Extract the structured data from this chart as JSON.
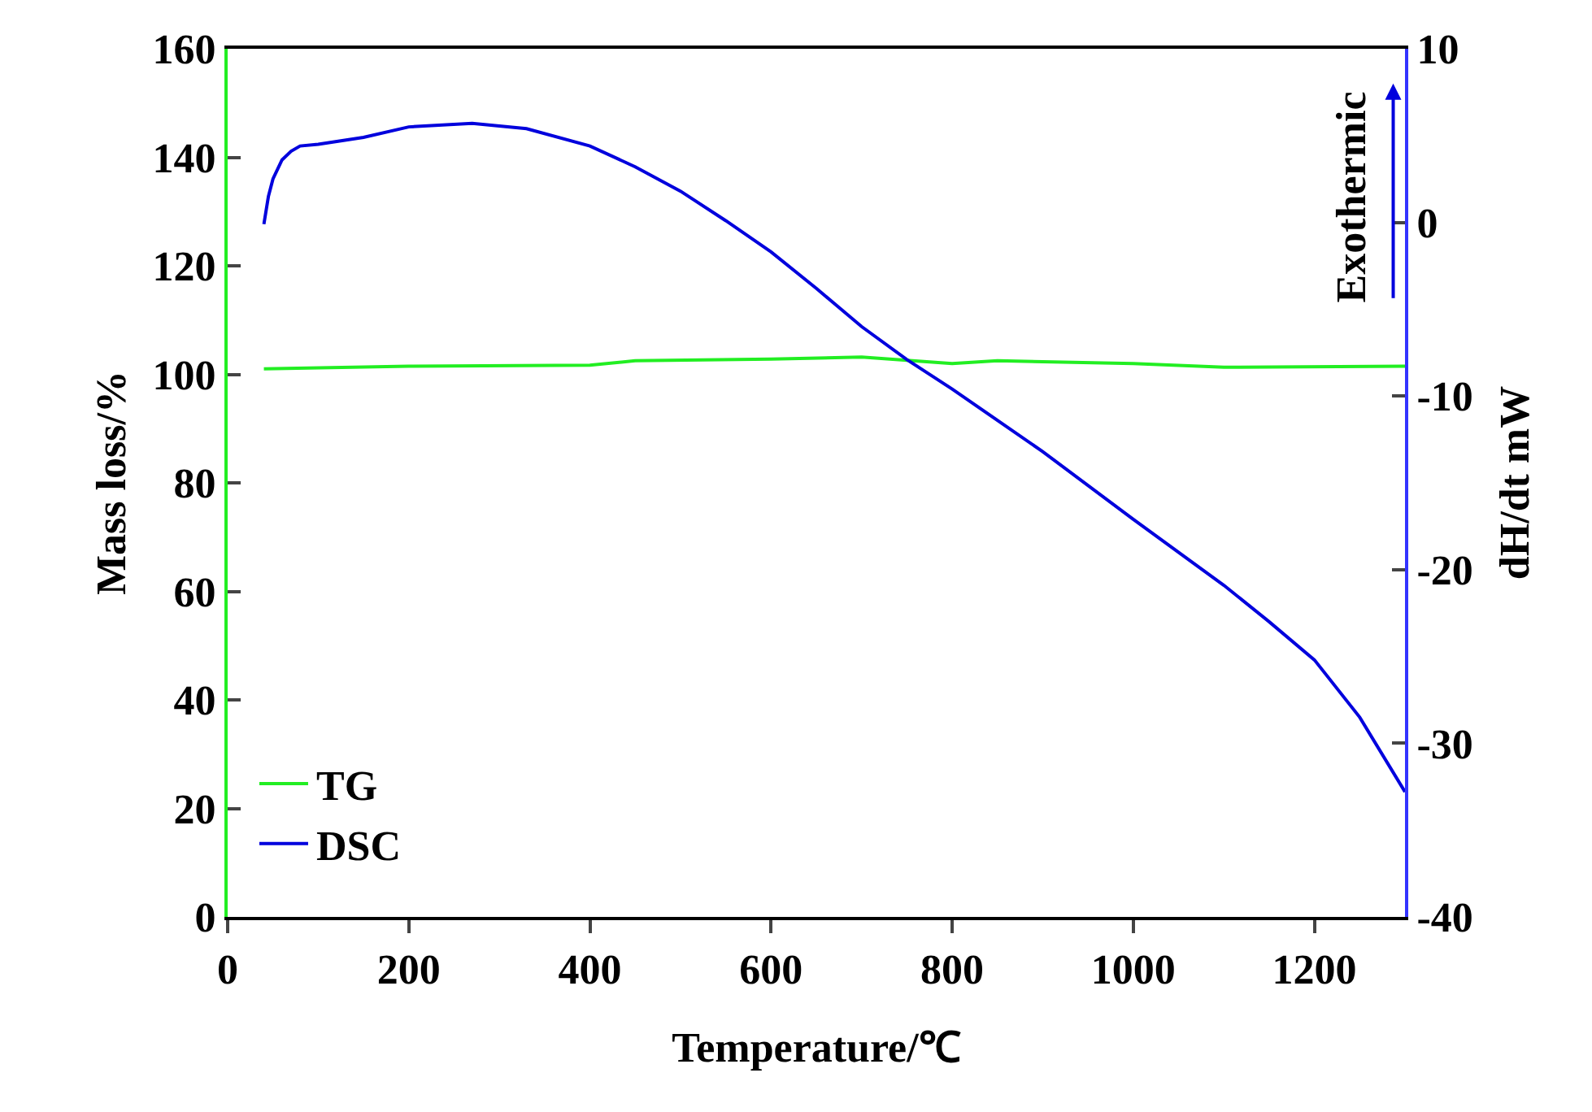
{
  "chart_data": {
    "type": "line",
    "xlabel": "Temperature/℃",
    "ylabel": "Mass loss/%",
    "y2label": "dH/dt mW",
    "annotations": [
      "Exothermic"
    ],
    "xlim": [
      0,
      1300
    ],
    "xticks": [
      0,
      200,
      400,
      600,
      800,
      1000,
      1200
    ],
    "ylim": [
      0,
      160
    ],
    "yticks": [
      0,
      20,
      40,
      60,
      80,
      100,
      120,
      140,
      160
    ],
    "y2lim": [
      -40,
      10
    ],
    "y2ticks": [
      -40,
      -30,
      -20,
      -10,
      0,
      10
    ],
    "grid": false,
    "legend": "bottom left",
    "marker": "none",
    "line_style": "solid",
    "series": [
      {
        "name": "TG",
        "color": "#22ee22",
        "x": [
          40,
          200,
          400,
          450,
          600,
          700,
          800,
          850,
          1000,
          1100,
          1300
        ],
        "values": [
          101,
          101.5,
          101.7,
          102.5,
          102.8,
          103.2,
          102,
          102.5,
          102,
          101.3,
          101.5
        ]
      },
      {
        "name": "DSC",
        "color": "#0000dd",
        "axis": "y2",
        "x": [
          40,
          45,
          50,
          60,
          70,
          80,
          100,
          150,
          200,
          270,
          330,
          400,
          450,
          500,
          550,
          600,
          650,
          700,
          750,
          800,
          900,
          1000,
          1100,
          1150,
          1200,
          1250,
          1300
        ],
        "values": [
          -0.1,
          1.5,
          2.5,
          3.6,
          4.1,
          4.4,
          4.5,
          4.9,
          5.5,
          5.7,
          5.4,
          4.4,
          3.2,
          1.8,
          0.1,
          -1.7,
          -3.8,
          -6.0,
          -7.9,
          -9.6,
          -13.2,
          -17.1,
          -20.9,
          -23.0,
          -25.2,
          -28.5,
          -32.8
        ]
      }
    ]
  }
}
